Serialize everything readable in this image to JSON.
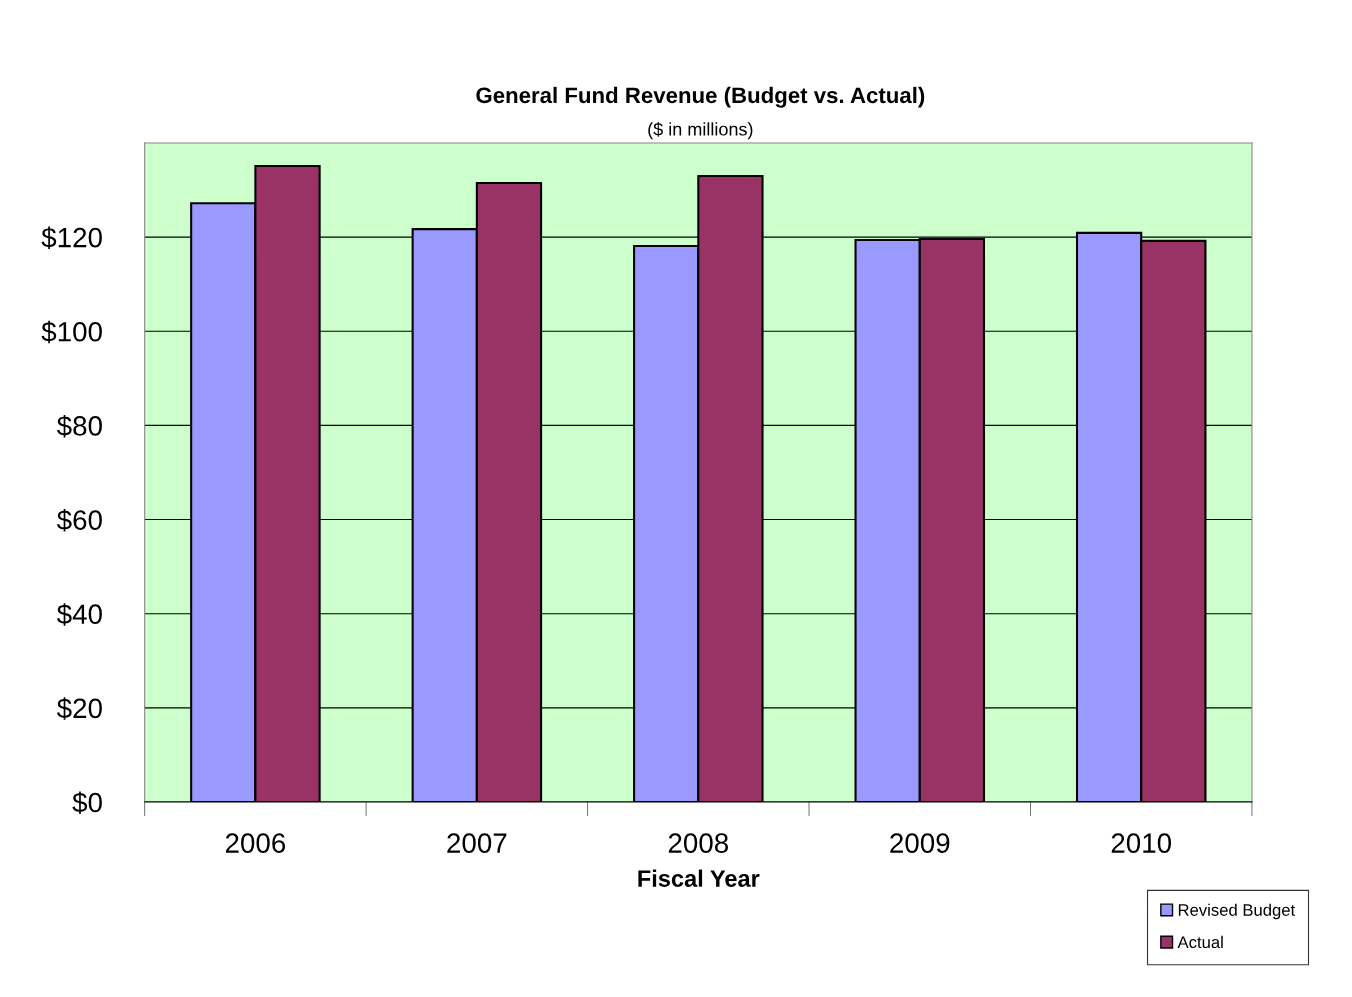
{
  "chart_data": {
    "type": "bar",
    "title": "General Fund Revenue (Budget vs. Actual)",
    "subtitle": "($ in millions)",
    "xlabel": "Fiscal Year",
    "categories": [
      "2006",
      "2007",
      "2008",
      "2009",
      "2010"
    ],
    "series": [
      {
        "name": "Revised Budget",
        "color": "#9999ff",
        "values": [
          127.2,
          121.7,
          118.1,
          119.4,
          120.9
        ]
      },
      {
        "name": "Actual",
        "color": "#993366",
        "values": [
          135.1,
          131.5,
          133.0,
          119.6,
          119.2
        ]
      }
    ],
    "ylim": [
      0,
      140
    ],
    "yticks": [
      {
        "value": 0,
        "label": "$0"
      },
      {
        "value": 20,
        "label": "$20"
      },
      {
        "value": 40,
        "label": "$40"
      },
      {
        "value": 60,
        "label": "$60"
      },
      {
        "value": 80,
        "label": "$80"
      },
      {
        "value": 100,
        "label": "$100"
      },
      {
        "value": 120,
        "label": "$120"
      }
    ],
    "grid": "y",
    "legend": "bottom right"
  }
}
